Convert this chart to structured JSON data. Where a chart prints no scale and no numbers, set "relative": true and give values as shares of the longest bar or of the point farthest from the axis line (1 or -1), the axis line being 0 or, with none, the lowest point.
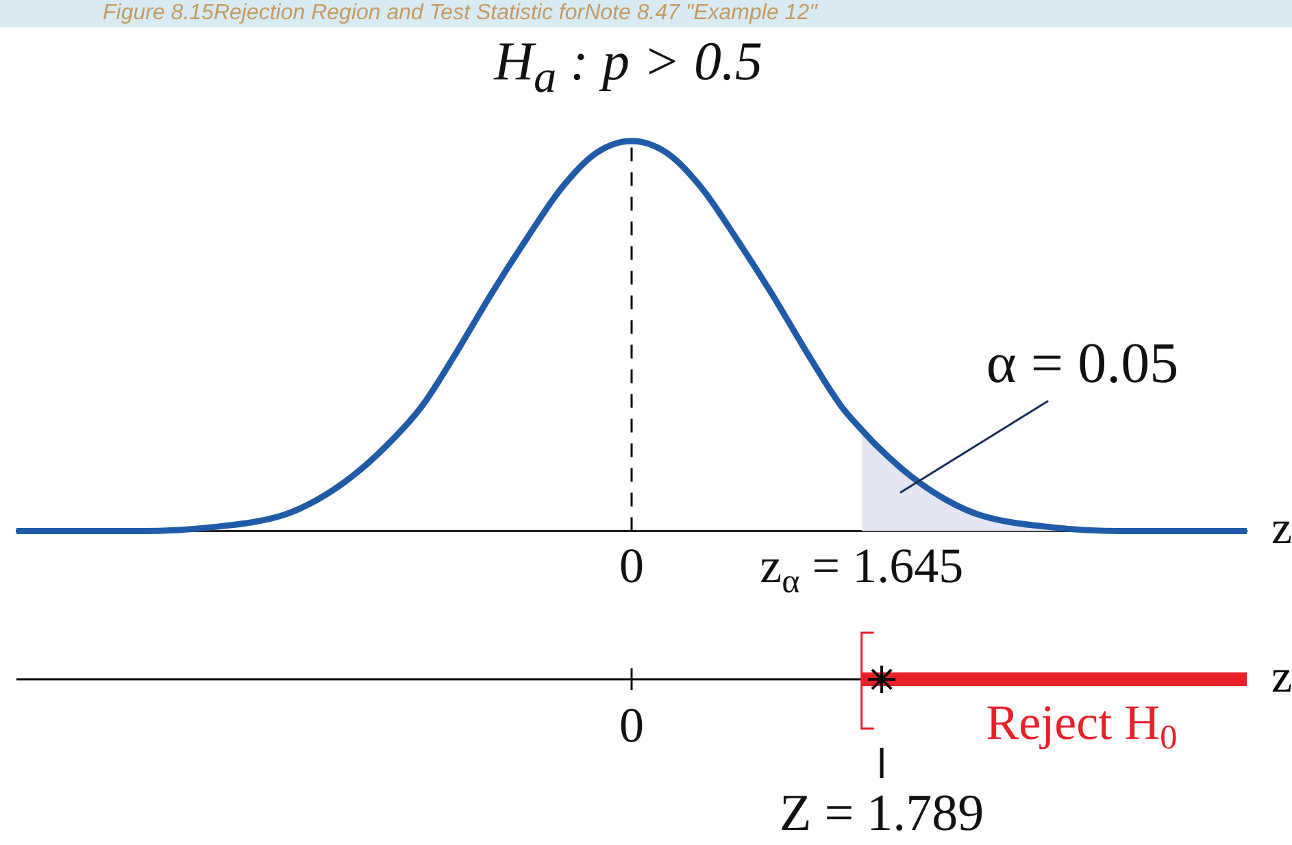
{
  "chart_data": {
    "type": "line",
    "title": "Figure 8.15Rejection Region and Test Statistic forNote 8.47 \"Example 12\"",
    "subtitle": "H$_{a}$ : p > 0.5",
    "xlabel": "z",
    "relative": true,
    "x": [
      -4.4,
      -4,
      -3.5,
      -3,
      -2.5,
      -2.25,
      -2,
      -1.75,
      -1.5,
      -1.25,
      -1,
      -0.75,
      -0.5,
      -0.25,
      0,
      0.25,
      0.5,
      0.75,
      1,
      1.25,
      1.5,
      1.645,
      1.75,
      2,
      2.25,
      2.5,
      3,
      3.5,
      4,
      4.4
    ],
    "series": [
      {
        "color": "#1f5ba8",
        "values": [
          0,
          0,
          0,
          0.01,
          0.04,
          0.08,
          0.14,
          0.22,
          0.32,
          0.46,
          0.61,
          0.75,
          0.88,
          0.97,
          1,
          0.97,
          0.88,
          0.75,
          0.61,
          0.46,
          0.32,
          0.26,
          0.22,
          0.14,
          0.08,
          0.04,
          0.01,
          0,
          0,
          0
        ]
      },
      {
        "type": "area",
        "color": "#e4e6f4",
        "x": [
          1.645,
          1.75,
          2,
          2.25,
          2.5,
          3,
          3.5,
          4,
          4.4
        ],
        "values": [
          0.26,
          0.22,
          0.14,
          0.08,
          0.04,
          0.01,
          0,
          0,
          0
        ]
      },
      {
        "type": "line",
        "name": "Reject H$_{0}$",
        "color": "#e8202a",
        "x": [
          1.645,
          4.4
        ],
        "values": [
          -0.38,
          -0.38
        ]
      },
      {
        "type": "scatter",
        "color": "#000000",
        "x": [
          1.789
        ],
        "values": [
          -0.38
        ]
      }
    ],
    "xlim": [
      -4.4,
      4.4
    ],
    "xticks": [
      0,
      {
        "value": 1.645,
        "label": "z$_{α}$ = 1.645"
      }
    ],
    "tick_labels": "x",
    "grid": false,
    "legend": false,
    "ref_lines": [
      {
        "axis": "x",
        "value": 0,
        "line_style": "dashed",
        "color": "#000000"
      },
      {
        "axis": "y",
        "value": -0.38,
        "label": "z",
        "color": "#000000"
      }
    ],
    "annotations": [
      "α = 0.05",
      {
        "text": "0",
        "x": 0,
        "y": -0.38
      },
      {
        "text": "Z = 1.789",
        "x": 1.789,
        "y": -0.38
      }
    ]
  }
}
